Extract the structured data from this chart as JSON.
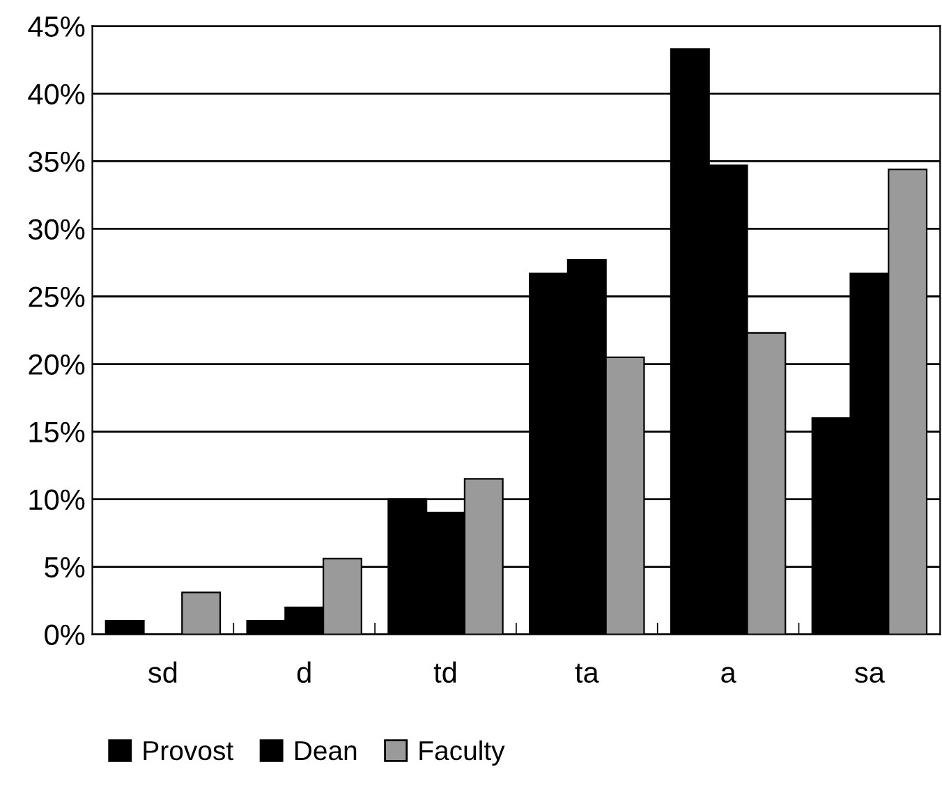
{
  "chart_data": {
    "type": "bar",
    "categories": [
      "sd",
      "d",
      "td",
      "ta",
      "a",
      "sa"
    ],
    "series": [
      {
        "name": "Provost",
        "color": "#000000",
        "values": [
          1,
          1,
          10,
          26.7,
          43.3,
          16
        ]
      },
      {
        "name": "Dean",
        "color": "#000000",
        "values": [
          0,
          2,
          9,
          27.7,
          34.7,
          26.7
        ]
      },
      {
        "name": "Faculty",
        "color": "#9a9a9a",
        "values": [
          3.1,
          5.6,
          11.5,
          20.5,
          22.3,
          34.4
        ]
      }
    ],
    "ylim": [
      0,
      45
    ],
    "yticks": [
      {
        "value": 0,
        "label": "0%"
      },
      {
        "value": 5,
        "label": "5%"
      },
      {
        "value": 10,
        "label": "10%"
      },
      {
        "value": 15,
        "label": "15%"
      },
      {
        "value": 20,
        "label": "20%"
      },
      {
        "value": 25,
        "label": "25%"
      },
      {
        "value": 30,
        "label": "30%"
      },
      {
        "value": 35,
        "label": "35%"
      },
      {
        "value": 40,
        "label": "40%"
      },
      {
        "value": 45,
        "label": "45%"
      }
    ],
    "grid": "y",
    "legend": "bottom left"
  }
}
